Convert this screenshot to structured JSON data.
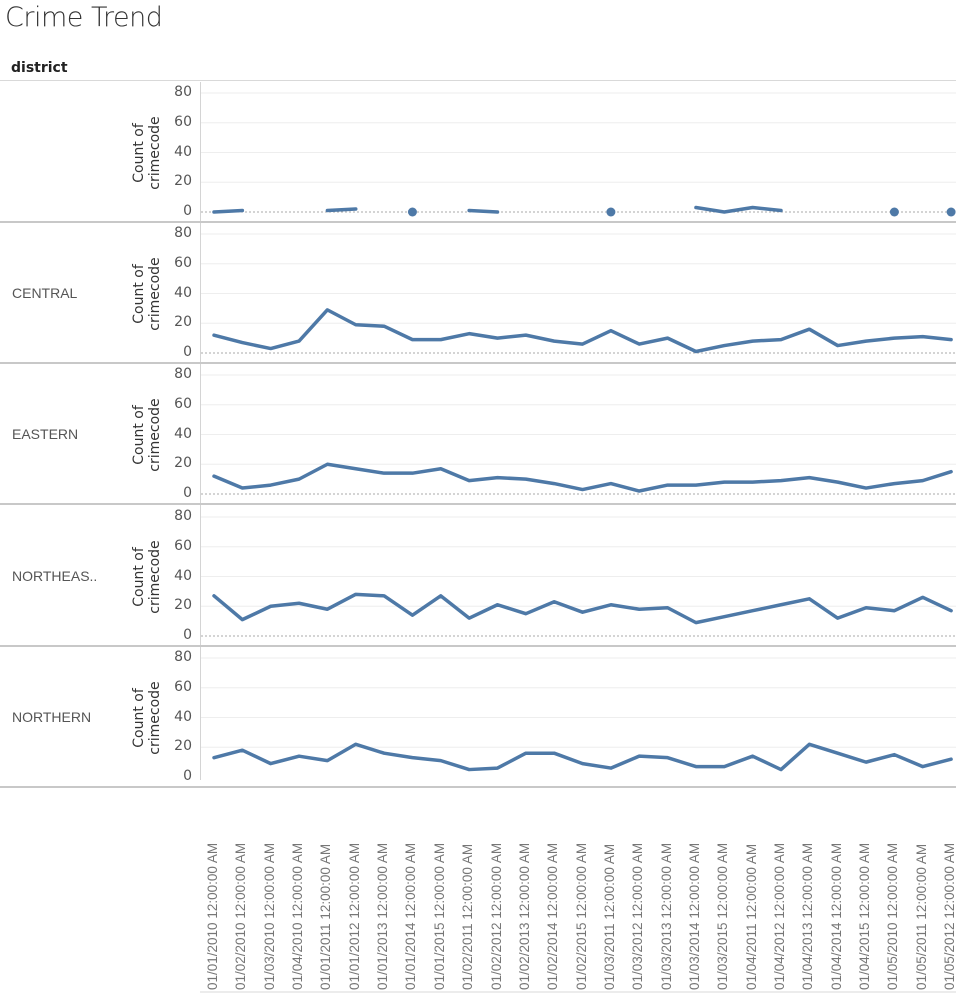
{
  "title": "Crime Trend",
  "row_header": "district",
  "y_axis_title_line1": "Count of",
  "y_axis_title_line2": "crimecode",
  "y_ticks": [
    "80",
    "60",
    "40",
    "20",
    "0"
  ],
  "line_color": "#4e79a7",
  "chart_data": {
    "type": "line",
    "title": "Crime Trend",
    "xlabel": "",
    "ylabel": "Count of crimecode",
    "ylim": [
      0,
      80
    ],
    "y_ticks": [
      0,
      20,
      40,
      60,
      80
    ],
    "grid": true,
    "facet_by": "district",
    "categories": [
      "01/01/2010 12:00:00 AM",
      "01/02/2010 12:00:00 AM",
      "01/03/2010 12:00:00 AM",
      "01/04/2010 12:00:00 AM",
      "01/01/2011 12:00:00 AM",
      "01/01/2012 12:00:00 AM",
      "01/01/2013 12:00:00 AM",
      "01/01/2014 12:00:00 AM",
      "01/01/2015 12:00:00 AM",
      "01/02/2011 12:00:00 AM",
      "01/02/2012 12:00:00 AM",
      "01/02/2013 12:00:00 AM",
      "01/02/2014 12:00:00 AM",
      "01/02/2015 12:00:00 AM",
      "01/03/2011 12:00:00 AM",
      "01/03/2012 12:00:00 AM",
      "01/03/2013 12:00:00 AM",
      "01/03/2014 12:00:00 AM",
      "01/03/2015 12:00:00 AM",
      "01/04/2011 12:00:00 AM",
      "01/04/2012 12:00:00 AM",
      "01/04/2013 12:00:00 AM",
      "01/04/2014 12:00:00 AM",
      "01/04/2015 12:00:00 AM",
      "01/05/2010 12:00:00 AM",
      "01/05/2011 12:00:00 AM",
      "01/05/2012 12:00:00 AM"
    ],
    "series": [
      {
        "name": "",
        "label": "",
        "values": [
          0,
          1,
          null,
          null,
          1,
          2,
          null,
          0,
          null,
          1,
          0,
          null,
          null,
          null,
          0,
          null,
          null,
          3,
          0,
          3,
          1,
          null,
          null,
          null,
          0,
          null,
          0
        ]
      },
      {
        "name": "CENTRAL",
        "label": "CENTRAL",
        "values": [
          12,
          7,
          3,
          8,
          29,
          19,
          18,
          9,
          9,
          13,
          10,
          12,
          8,
          6,
          15,
          6,
          10,
          1,
          5,
          8,
          9,
          16,
          5,
          8,
          10,
          11,
          9
        ]
      },
      {
        "name": "EASTERN",
        "label": "EASTERN",
        "values": [
          12,
          4,
          6,
          10,
          20,
          17,
          14,
          14,
          17,
          9,
          11,
          10,
          7,
          3,
          7,
          2,
          6,
          6,
          8,
          8,
          9,
          11,
          8,
          4,
          7,
          9,
          15
        ]
      },
      {
        "name": "NORTHEASTERN",
        "label": "NORTHEAS..",
        "values": [
          27,
          11,
          20,
          22,
          18,
          28,
          27,
          14,
          27,
          12,
          21,
          15,
          23,
          16,
          21,
          18,
          19,
          9,
          13,
          17,
          21,
          25,
          12,
          19,
          17,
          26,
          17
        ]
      },
      {
        "name": "NORTHERN",
        "label": "NORTHERN",
        "values": [
          13,
          18,
          9,
          14,
          11,
          22,
          16,
          13,
          11,
          5,
          6,
          16,
          16,
          9,
          6,
          14,
          13,
          7,
          7,
          14,
          5,
          22,
          16,
          10,
          15,
          7,
          12
        ]
      }
    ]
  }
}
